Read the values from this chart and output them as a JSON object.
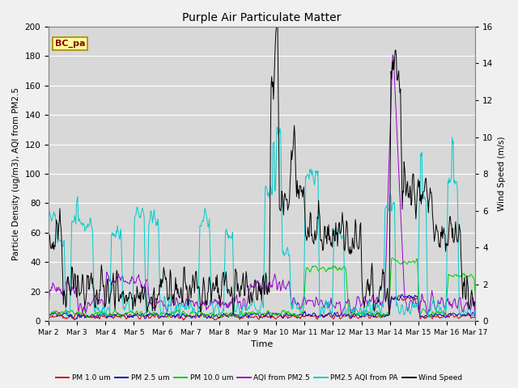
{
  "title": "Purple Air Particulate Matter",
  "xlabel": "Time",
  "ylabel_left": "Particle Density (ug/m3), AQI from PM2.5",
  "ylabel_right": "Wind Speed (m/s)",
  "annotation": "BC_pa",
  "ylim_left": [
    0,
    200
  ],
  "ylim_right": [
    0,
    16
  ],
  "yticks_left": [
    0,
    20,
    40,
    60,
    80,
    100,
    120,
    140,
    160,
    180,
    200
  ],
  "yticks_right": [
    0,
    2,
    4,
    6,
    8,
    10,
    12,
    14,
    16
  ],
  "xtick_labels": [
    "Mar 2",
    "Mar 3",
    "Mar 4",
    "Mar 5",
    "Mar 6",
    "Mar 7",
    "Mar 8",
    "Mar 9",
    "Mar 10",
    "Mar 11",
    "Mar 12",
    "Mar 13",
    "Mar 14",
    "Mar 15",
    "Mar 16",
    "Mar 17"
  ],
  "legend_entries": [
    {
      "label": "PM 1.0 um",
      "color": "#cc0000"
    },
    {
      "label": "PM 2.5 um",
      "color": "#0000cc"
    },
    {
      "label": "PM 10.0 um",
      "color": "#00cc00"
    },
    {
      "label": "AQI from PM2.5",
      "color": "#9900cc"
    },
    {
      "label": "PM2.5 AQI from PA",
      "color": "#00cccc"
    },
    {
      "label": "Wind Speed",
      "color": "#000000"
    }
  ],
  "bg_color": "#d8d8d8",
  "fig_bg": "#f0f0f0",
  "grid_color": "#ffffff",
  "n_points": 720,
  "n_days": 15
}
